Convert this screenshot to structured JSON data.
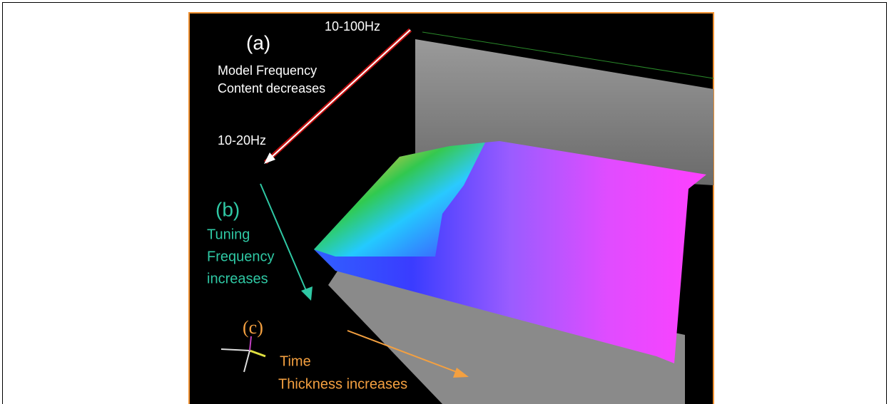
{
  "annotations": [
    {
      "label": "(a)",
      "lines": [
        "10-100Hz",
        "Model Frequency",
        "Content decreases",
        "10-20Hz"
      ]
    },
    {
      "label": "(b)",
      "lines": [
        "Tuning",
        "Frequency",
        "increases"
      ]
    },
    {
      "label": "(c)",
      "lines": [
        "Time",
        "Thickness increases"
      ]
    }
  ]
}
